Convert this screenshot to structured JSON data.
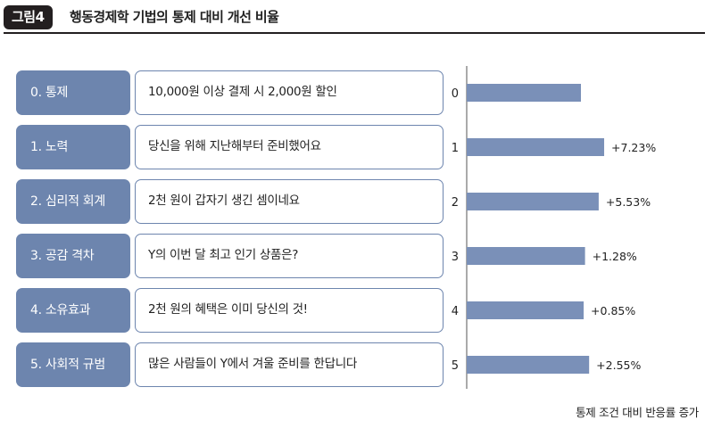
{
  "header": {
    "figure_label": "그림4",
    "title": "행동경제학 기법의 통제 대비 개선 비율"
  },
  "rows": [
    {
      "category": "0. 통제",
      "message": "10,000원 이상 결제 시 2,000원 할인"
    },
    {
      "category": "1. 노력",
      "message": "당신을 위해 지난해부터 준비했어요"
    },
    {
      "category": "2. 심리적 회계",
      "message": "2천 원이 갑자기 생긴 셈이네요"
    },
    {
      "category": "3. 공감 격차",
      "message": "Y의 이번 달 최고 인기 상품은?"
    },
    {
      "category": "4. 소유효과",
      "message": "2천 원의 혜택은 이미 당신의 것!"
    },
    {
      "category": "5. 사회적 규범",
      "message": "많은 사람들이 Y에서 겨울 준비를 한답니다"
    }
  ],
  "chart_data": {
    "type": "bar",
    "orientation": "horizontal",
    "categories": [
      "0",
      "1",
      "2",
      "3",
      "4",
      "5"
    ],
    "values": [
      0,
      7.23,
      5.53,
      1.28,
      0.85,
      2.55
    ],
    "data_labels": [
      "",
      "+7.23%",
      "+5.53%",
      "+1.28%",
      "+0.85%",
      "+2.55%"
    ],
    "bar_color": "#7a90b8",
    "note": "통제 조건 대비 반응률 증가"
  },
  "colors": {
    "category_box": "#6d85ae",
    "message_border": "#6d85ae",
    "badge_bg": "#231f20",
    "bar": "#7a90b8"
  }
}
